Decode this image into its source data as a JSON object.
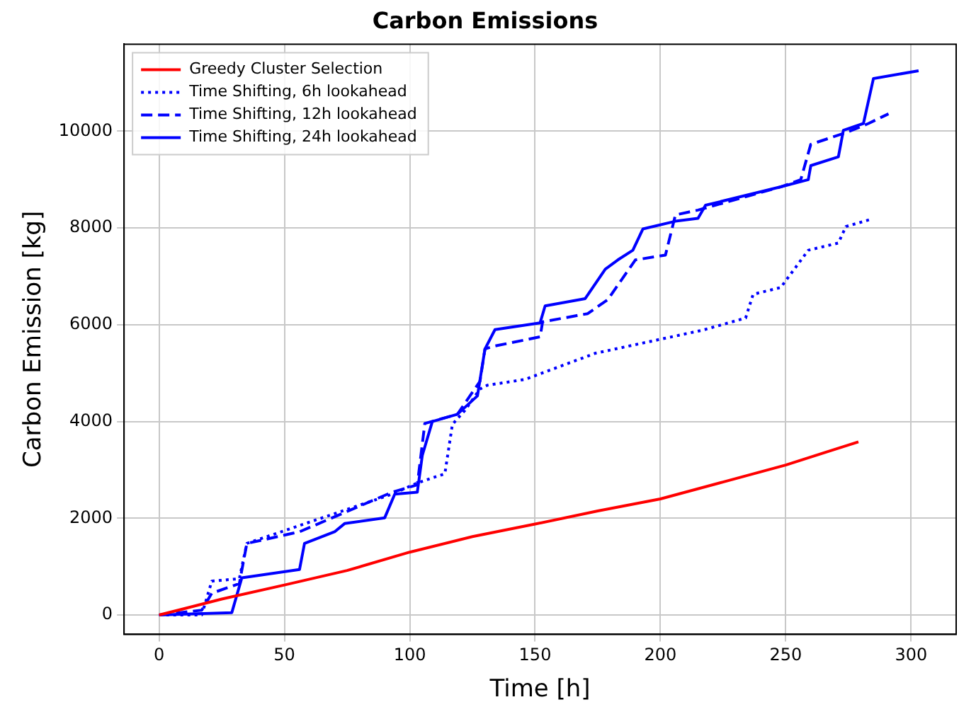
{
  "chart_data": {
    "type": "line",
    "title": "Carbon Emissions",
    "xlabel": "Time [h]",
    "ylabel": "Carbon Emission [kg]",
    "xlim": [
      -14,
      318
    ],
    "xticks": [
      0,
      50,
      100,
      150,
      200,
      250,
      300
    ],
    "ylim": [
      -400,
      11800
    ],
    "yticks": [
      0,
      2000,
      4000,
      6000,
      8000,
      10000
    ],
    "grid": true,
    "legend": "top left",
    "marker": "none",
    "series": [
      {
        "name": "Greedy Cluster Selection",
        "color": "#ff0000",
        "line_style": "solid",
        "x": [
          0,
          25,
          50,
          75,
          100,
          125,
          150,
          175,
          200,
          225,
          250,
          265,
          279
        ],
        "values": [
          0,
          330,
          620,
          920,
          1300,
          1620,
          1880,
          2150,
          2400,
          2750,
          3100,
          3350,
          3580
        ]
      },
      {
        "name": "Time Shifting, 6h lookahead",
        "color": "#0000ff",
        "line_style": "dotted",
        "x": [
          0,
          17,
          21,
          32,
          35,
          93,
          103,
          114,
          117,
          122,
          128,
          131,
          146,
          174,
          217,
          234,
          237,
          248,
          259,
          271,
          274,
          284
        ],
        "values": [
          0,
          0,
          700,
          750,
          1480,
          2500,
          2730,
          2920,
          3940,
          4230,
          4670,
          4750,
          4870,
          5410,
          5890,
          6140,
          6630,
          6770,
          7540,
          7690,
          8030,
          8180
        ]
      },
      {
        "name": "Time Shifting, 12h lookahead",
        "color": "#0000ff",
        "line_style": "dashed",
        "x": [
          0,
          17,
          21,
          32,
          35,
          56,
          93,
          103,
          106,
          119,
          128,
          130,
          133,
          152,
          153,
          171,
          179,
          190,
          202,
          206,
          215,
          248,
          256,
          260,
          274,
          283,
          291
        ],
        "values": [
          0,
          100,
          450,
          650,
          1480,
          1720,
          2540,
          2690,
          3960,
          4150,
          4830,
          5500,
          5550,
          5750,
          6060,
          6230,
          6520,
          7340,
          7440,
          8270,
          8370,
          8850,
          9000,
          9730,
          9970,
          10160,
          10360
        ]
      },
      {
        "name": "Time Shifting, 24h lookahead",
        "color": "#0000ff",
        "line_style": "solid",
        "x": [
          0,
          29,
          33,
          56,
          58,
          70,
          74,
          90,
          94,
          103,
          105,
          109,
          119,
          127,
          130,
          134,
          152,
          154,
          170,
          178,
          183,
          189,
          193,
          206,
          215,
          218,
          248,
          259,
          260,
          271,
          273,
          281,
          285,
          303
        ],
        "values": [
          0,
          50,
          770,
          940,
          1480,
          1720,
          1890,
          2010,
          2500,
          2540,
          3300,
          4000,
          4150,
          4530,
          5500,
          5900,
          6040,
          6390,
          6540,
          7150,
          7340,
          7540,
          7980,
          8140,
          8200,
          8470,
          8850,
          9000,
          9290,
          9470,
          10020,
          10160,
          11090,
          11250
        ]
      }
    ]
  }
}
